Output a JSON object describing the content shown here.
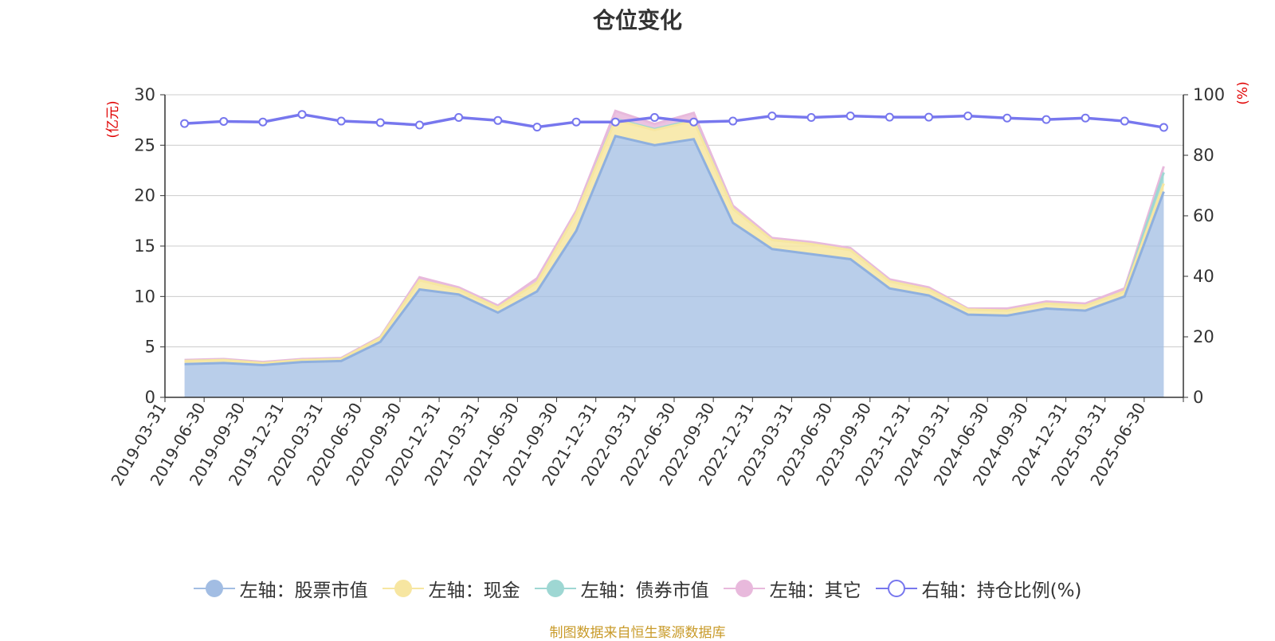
{
  "title": "仓位变化",
  "source": "制图数据来自恒生聚源数据库",
  "colors": {
    "stock": "#a2bde3",
    "cash": "#f7e6a1",
    "bond": "#9ed7d3",
    "other": "#e8b9dc",
    "ratio": "#7777ee"
  },
  "legend": [
    {
      "label": "左轴：股票市值",
      "color": "#a2bde3",
      "fill": "#a2bde3"
    },
    {
      "label": "左轴：现金",
      "color": "#f7e6a1",
      "fill": "#f7e6a1"
    },
    {
      "label": "左轴：债券市值",
      "color": "#9ed7d3",
      "fill": "#9ed7d3"
    },
    {
      "label": "左轴：其它",
      "color": "#e8b9dc",
      "fill": "#e8b9dc"
    },
    {
      "label": "右轴：持仓比例(%)",
      "color": "#7777ee",
      "fill": "#ffffff"
    }
  ],
  "chart_data": {
    "type": "area",
    "title": "仓位变化",
    "y_left_label": "(亿元)",
    "y_right_label": "(%)",
    "y_left_ticks": [
      "0",
      "5",
      "10",
      "15",
      "20",
      "25",
      "30"
    ],
    "y_right_ticks": [
      "0",
      "20",
      "40",
      "60",
      "80",
      "100"
    ],
    "y_left_range": [
      0,
      30
    ],
    "y_right_range": [
      0,
      100
    ],
    "grid": true,
    "legend_position": "bottom",
    "x_tick_labels": [
      "2019-03-31",
      "2019-06-30",
      "2019-09-30",
      "2019-12-31",
      "2020-03-31",
      "2020-06-30",
      "2020-09-30",
      "2020-12-31",
      "2021-03-31",
      "2021-06-30",
      "2021-09-30",
      "2021-12-31",
      "2022-03-31",
      "2022-06-30",
      "2022-09-30",
      "2022-12-31",
      "2023-03-31",
      "2023-06-30",
      "2023-09-30",
      "2023-12-31",
      "2024-03-31",
      "2024-06-30",
      "2024-09-30",
      "2024-12-31",
      "2025-03-31",
      "2025-06-30"
    ],
    "stacked_series": [
      {
        "name": "左轴：股票市值",
        "values": [
          3.3,
          3.4,
          3.2,
          3.5,
          3.6,
          5.5,
          10.7,
          10.2,
          8.4,
          10.5,
          16.5,
          25.9,
          25.0,
          25.6,
          17.3,
          14.7,
          14.2,
          13.7,
          10.8,
          10.1,
          8.2,
          8.1,
          8.8,
          8.6,
          10.0,
          20.4
        ]
      },
      {
        "name": "左轴：现金",
        "values": [
          0.3,
          0.3,
          0.2,
          0.2,
          0.2,
          0.4,
          0.9,
          0.5,
          0.5,
          0.9,
          1.7,
          1.6,
          1.5,
          1.8,
          1.4,
          0.9,
          1.0,
          0.9,
          0.7,
          0.6,
          0.5,
          0.5,
          0.5,
          0.5,
          0.5,
          0.8
        ]
      },
      {
        "name": "左轴：债券市值",
        "values": [
          0,
          0,
          0,
          0,
          0,
          0,
          0,
          0,
          0,
          0,
          0,
          0.1,
          0.1,
          0.1,
          0,
          0,
          0,
          0,
          0,
          0,
          0,
          0,
          0,
          0,
          0,
          1.1
        ]
      },
      {
        "name": "左轴：其它",
        "values": [
          0.1,
          0.1,
          0.1,
          0.1,
          0.1,
          0.1,
          0.3,
          0.2,
          0.2,
          0.4,
          0.3,
          0.8,
          0.5,
          0.7,
          0.3,
          0.2,
          0.2,
          0.2,
          0.2,
          0.2,
          0.1,
          0.2,
          0.2,
          0.2,
          0.3,
          0.6
        ]
      }
    ],
    "line_series": {
      "name": "右轴：持仓比例(%)",
      "values": [
        90.5,
        91.2,
        91.0,
        93.5,
        91.3,
        90.8,
        90.0,
        92.5,
        91.5,
        89.3,
        91.0,
        91.0,
        92.5,
        91.0,
        91.3,
        93.0,
        92.5,
        93.0,
        92.6,
        92.6,
        93.0,
        92.3,
        91.8,
        92.3,
        91.3,
        89.2
      ]
    }
  }
}
